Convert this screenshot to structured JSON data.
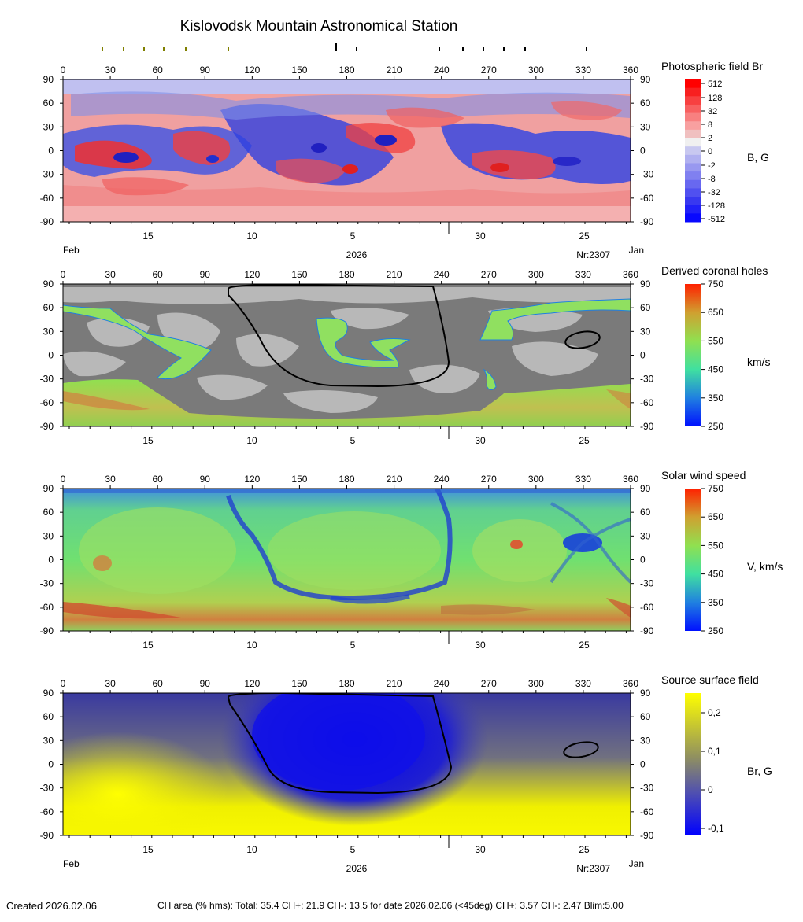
{
  "title": "Kislovodsk Mountain Astronomical Station",
  "lon_ticks": [
    "0",
    "30",
    "60",
    "90",
    "120",
    "150",
    "180",
    "210",
    "240",
    "270",
    "300",
    "330",
    "360"
  ],
  "lat_ticks": [
    "90",
    "60",
    "30",
    "0",
    "-30",
    "-60",
    "-90"
  ],
  "date_ticks": [
    "15",
    "10",
    "5",
    "30",
    "25"
  ],
  "month_left": "Feb",
  "month_right": "Jan",
  "year": "2026",
  "rotation": "Nr:2307",
  "panels": [
    {
      "title": "Photospheric field Br",
      "unit": "B, G",
      "colorbar": [
        "512",
        "128",
        "32",
        "8",
        "2",
        "0",
        "-2",
        "-8",
        "-32",
        "-128",
        "-512"
      ]
    },
    {
      "title": "Derived coronal holes",
      "unit": "km/s",
      "colorbar": [
        "750",
        "650",
        "550",
        "450",
        "350",
        "250"
      ]
    },
    {
      "title": "Solar wind speed",
      "unit": "V, km/s",
      "colorbar": [
        "750",
        "650",
        "550",
        "450",
        "350",
        "250"
      ]
    },
    {
      "title": "Source surface field",
      "unit": "Br, G",
      "colorbar": [
        "0,2",
        "0,1",
        "0",
        "-0,1"
      ]
    }
  ],
  "footer": {
    "created": "Created  2026.02.06",
    "ch_area": "CH area (% hms): Total: 35.4 CH+: 21.9   CH-: 13.5 for date 2026.02.06 (<45deg) CH+: 3.57    CH-: 2.47 Blim:5.00"
  },
  "colors": {
    "positive": "#f05050",
    "negative": "#3040e0",
    "ch_green": "#80e060",
    "gray_dark": "#7a7a7a",
    "gray_light": "#b8b8b8",
    "ss_yellow": "#f0f000",
    "ss_blue": "#2020e0",
    "neutral_line": "#000000"
  },
  "chart_data": [
    {
      "type": "heatmap",
      "title": "Photospheric field Br",
      "xlim": [
        0,
        360
      ],
      "ylim": [
        -90,
        90
      ],
      "colorbar_unit": "B, G"
    },
    {
      "type": "heatmap",
      "title": "Derived coronal holes",
      "xlim": [
        0,
        360
      ],
      "ylim": [
        -90,
        90
      ],
      "colorbar_unit": "km/s",
      "colorbar_range": [
        250,
        750
      ]
    },
    {
      "type": "heatmap",
      "title": "Solar wind speed",
      "xlim": [
        0,
        360
      ],
      "ylim": [
        -90,
        90
      ],
      "colorbar_unit": "V, km/s",
      "colorbar_range": [
        250,
        750
      ]
    },
    {
      "type": "heatmap",
      "title": "Source surface field",
      "xlim": [
        0,
        360
      ],
      "ylim": [
        -90,
        90
      ],
      "colorbar_unit": "Br, G",
      "colorbar_range": [
        -0.1,
        0.25
      ]
    }
  ]
}
